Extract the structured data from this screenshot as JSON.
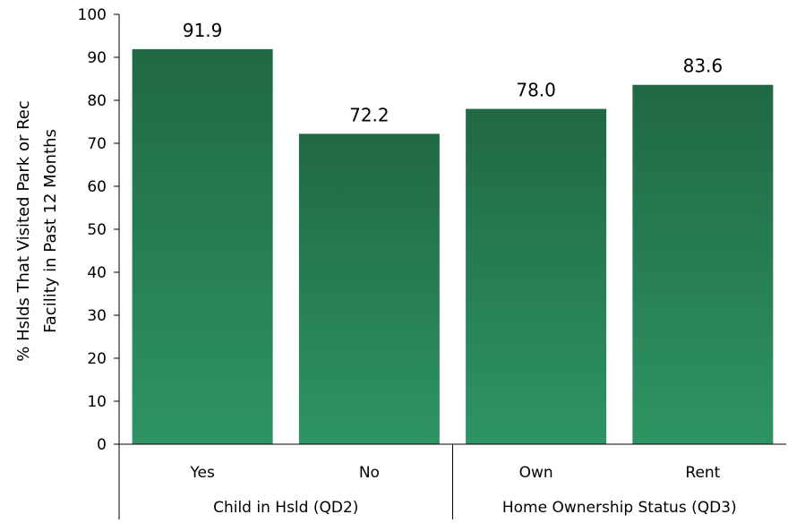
{
  "chart_data": {
    "type": "bar",
    "title": "",
    "ylabel_lines": [
      "% Hslds That Visited Park or Rec",
      "Facility in Past 12 Months"
    ],
    "ylim": [
      0,
      100
    ],
    "yticks": [
      "0",
      "10",
      "20",
      "30",
      "40",
      "50",
      "60",
      "70",
      "80",
      "90",
      "100"
    ],
    "categories": [
      "Yes",
      "No",
      "Own",
      "Rent"
    ],
    "values": [
      91.9,
      72.2,
      78.0,
      83.6
    ],
    "value_labels": [
      "91.9",
      "72.2",
      "78.0",
      "83.6"
    ],
    "groups": [
      {
        "label": "Child in Hsld (QD2)",
        "categories": [
          "Yes",
          "No"
        ]
      },
      {
        "label": "Home Ownership Status (QD3)",
        "categories": [
          "Own",
          "Rent"
        ]
      }
    ],
    "grid": false,
    "legend": "none",
    "bar_color_top": "#206844",
    "bar_color_bottom": "#2e9463"
  }
}
